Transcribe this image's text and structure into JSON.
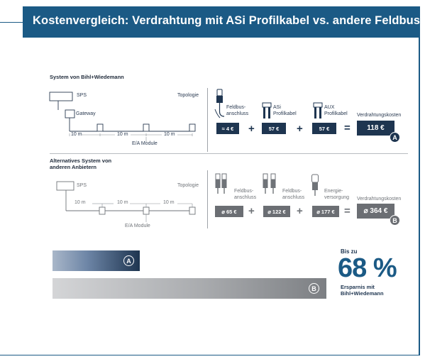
{
  "header": {
    "title": "Kostenvergleich: Verdrahtung mit ASi Profilkabel vs. andere Feldbussysteme"
  },
  "colors": {
    "brand": "#1b5a85",
    "dark_navy": "#1e3550",
    "gray": "#6b6e73"
  },
  "system_a": {
    "title": "System von Bihl+Wiedemann",
    "topology": {
      "sps": "SPS",
      "gateway": "Gateway",
      "topologie": "Topologie",
      "segments": [
        "10 m",
        "10 m",
        "10 m"
      ],
      "module_label": "E/A Module"
    },
    "costs": [
      {
        "label_1": "Feldbus-",
        "label_2": "anschluss",
        "value": "≈ 4 €",
        "icon": "field-connector-icon"
      },
      {
        "label_1": "ASi",
        "label_2": "Profilkabel",
        "value": "57 €",
        "icon": "profile-cable-icon"
      },
      {
        "label_1": "AUX",
        "label_2": "Profilkabel",
        "value": "57 €",
        "icon": "profile-cable-icon"
      }
    ],
    "total_label": "Verdrahtungskosten",
    "total_value": "118 €",
    "badge": "A",
    "plus": "+",
    "equals": "="
  },
  "system_b": {
    "title_line1": "Alternatives System von",
    "title_line2": "anderen Anbietern",
    "topology": {
      "sps": "SPS",
      "topologie": "Topologie",
      "segments": [
        "10 m",
        "10 m",
        "10 m"
      ],
      "module_label": "E/A Module"
    },
    "costs": [
      {
        "label_1": "Feldbus-",
        "label_2": "anschluss",
        "value": "⌀ 65 €",
        "icon": "m12-connector-icon"
      },
      {
        "label_1": "Feldbus-",
        "label_2": "anschluss",
        "value": "⌀ 122 €",
        "icon": "m12-connector-icon"
      },
      {
        "label_1": "Energie-",
        "label_2": "versorgung",
        "value": "⌀ 177 €",
        "icon": "power-connector-icon"
      }
    ],
    "total_label": "Verdrahtungskosten",
    "total_value": "⌀ 364 €",
    "badge": "B",
    "plus": "+",
    "equals": "="
  },
  "comparison": {
    "bar_a_label": "A",
    "bar_b_label": "B",
    "bar_a_value": 118,
    "bar_b_value": 364,
    "bis_zu": "Bis zu",
    "percent": "68 %",
    "savings_line1": "Ersparnis mit",
    "savings_line2": "Bihl+Wiedemann"
  }
}
